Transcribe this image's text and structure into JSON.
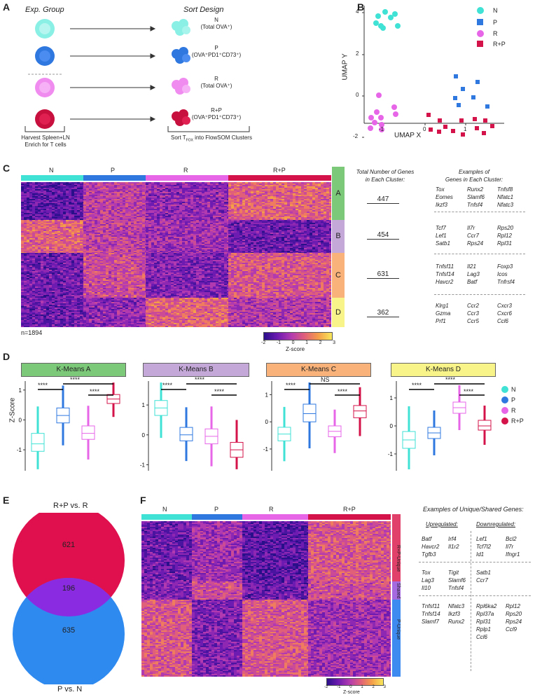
{
  "panels": {
    "A": "A",
    "B": "B",
    "C": "C",
    "D": "D",
    "E": "E",
    "F": "F"
  },
  "colors": {
    "N": "#3fe2d4",
    "P": "#2f78e0",
    "R": "#e766e8",
    "RP": "#d4134a",
    "green": "#7dc97a",
    "purple": "#c3a8d8",
    "orange": "#f8b27a",
    "yellow": "#f8f48a",
    "venn_top": "#e0104f",
    "venn_bottom": "#2f8af0",
    "venn_overlap": "#8a2be2"
  },
  "panelA": {
    "exp_group_title": "Exp. Group",
    "sort_design_title": "Sort Design",
    "groups": [
      {
        "label": "N",
        "sub": "(Total OVA⁺)"
      },
      {
        "label": "P",
        "sub": "(OVA⁺PD1⁺CD73⁺)"
      },
      {
        "label": "R",
        "sub": "(Total OVA⁺)"
      },
      {
        "label": "R+P",
        "sub": "(OVA⁺PD1⁺CD73⁺)"
      }
    ],
    "harvest_line1": "Harvest Spleen+LN",
    "harvest_line2": "Enrich for T cells",
    "sort_prefix": "Sort T",
    "sort_sub": "FOX",
    "sort_suffix": " into FlowSOM Clusters"
  },
  "panelB": {
    "xlabel": "UMAP X",
    "ylabel": "UMAP Y",
    "legend": [
      "N",
      "P",
      "R",
      "R+P"
    ],
    "xticks": [
      "-1",
      "0",
      "1"
    ],
    "yticks": [
      "4",
      "2",
      "0",
      "-2"
    ]
  },
  "panelC": {
    "groups": [
      "N",
      "P",
      "R",
      "R+P"
    ],
    "clusters": [
      "A",
      "B",
      "C",
      "D"
    ],
    "n_label": "n=1894",
    "total_header_line1": "Total Number of Genes",
    "total_header_line2": "in Each Cluster:",
    "examples_header_line1": "Examples of",
    "examples_header_line2": "Genes in Each Cluster:",
    "counts": [
      "447",
      "454",
      "631",
      "362"
    ],
    "genes": [
      [
        "Tox\nEomes\nIkzf3",
        "Runx2\nSlamf6\nTnfsf4",
        "Tnfsf8\nNfatc1\nNfatc3"
      ],
      [
        "Tcf7\nLef1\nSatb1",
        "Il7r\nCcr7\nRps24",
        "Rps20\nRpl12\nRpl31"
      ],
      [
        "Tnfsf11\nTnfsf14\nHavcr2",
        "Il21\nLag3\nBatf",
        "Foxp3\nIcos\nTnfrsf4"
      ],
      [
        "Klrg1\nGzma\nPrf1",
        "Ccr2\nCcr3\nCcr5",
        "Cxcr3\nCxcr6\nCcl6"
      ]
    ],
    "zscore_label": "Z-score",
    "zticks": [
      "-2",
      "-1",
      "0",
      "1",
      "2",
      "3"
    ]
  },
  "panelD": {
    "ylabel": "Z-Score",
    "legend": [
      "N",
      "P",
      "R",
      "R+P"
    ],
    "charts": [
      {
        "title": "K-Means A",
        "sig": [
          "****",
          "****",
          "****"
        ]
      },
      {
        "title": "K-Means B",
        "sig": [
          "****",
          "****",
          "****"
        ]
      },
      {
        "title": "K-Means C",
        "sig": [
          "****",
          "NS",
          "****"
        ]
      },
      {
        "title": "K-Means D",
        "sig": [
          "****",
          "****",
          "****"
        ]
      }
    ]
  },
  "chart_data": [
    {
      "type": "box",
      "title": "K-Means A",
      "categories": [
        "N",
        "P",
        "R",
        "R+P"
      ],
      "median": [
        -0.8,
        0.15,
        -0.45,
        0.7
      ],
      "q1": [
        -1.05,
        -0.1,
        -0.65,
        0.55
      ],
      "q3": [
        -0.45,
        0.4,
        -0.2,
        0.85
      ],
      "ylim": [
        -1.7,
        1.3
      ],
      "yticks": [
        -1,
        0,
        1
      ]
    },
    {
      "type": "box",
      "title": "K-Means B",
      "categories": [
        "N",
        "P",
        "R",
        "R+P"
      ],
      "median": [
        0.9,
        0.0,
        -0.05,
        -0.5
      ],
      "q1": [
        0.65,
        -0.2,
        -0.3,
        -0.75
      ],
      "q3": [
        1.15,
        0.25,
        0.2,
        -0.25
      ],
      "ylim": [
        -1.2,
        1.8
      ],
      "yticks": [
        -1,
        0,
        1
      ]
    },
    {
      "type": "box",
      "title": "K-Means C",
      "categories": [
        "N",
        "P",
        "R",
        "R+P"
      ],
      "median": [
        -0.45,
        0.3,
        -0.35,
        0.4
      ],
      "q1": [
        -0.7,
        0.0,
        -0.55,
        0.15
      ],
      "q3": [
        -0.2,
        0.65,
        -0.15,
        0.6
      ],
      "ylim": [
        -1.8,
        1.5
      ],
      "yticks": [
        -1,
        0,
        1
      ]
    },
    {
      "type": "box",
      "title": "K-Means D",
      "categories": [
        "N",
        "P",
        "R",
        "R+P"
      ],
      "median": [
        -0.5,
        -0.25,
        0.65,
        0.0
      ],
      "q1": [
        -0.8,
        -0.45,
        0.45,
        -0.15
      ],
      "q3": [
        -0.2,
        -0.05,
        0.85,
        0.2
      ],
      "ylim": [
        -1.6,
        1.6
      ],
      "yticks": [
        -1,
        0,
        1
      ]
    },
    {
      "type": "venn",
      "sets": [
        "R+P vs. R",
        "P vs. N"
      ],
      "only_top": 621,
      "overlap": 196,
      "only_bottom": 635
    }
  ],
  "panelE": {
    "top_label": "R+P vs. R",
    "bottom_label": "P vs. N",
    "top_value": "621",
    "overlap_value": "196",
    "bottom_value": "635"
  },
  "panelF": {
    "groups": [
      "N",
      "P",
      "R",
      "R+P"
    ],
    "clusters": [
      "R+P-Unique",
      "Shared",
      "P-Unique"
    ],
    "examples_title": "Examples of Unique/Shared Genes:",
    "upregulated": "Upregulated:",
    "downregulated": "Downregulated:",
    "genes": [
      [
        "Batf\nHavcr2\nTgfb3",
        "Irf4\nIl1r2",
        "Lef1\nTcf7l2\nId1",
        "Bcl2\nIl7r\nIfngr1"
      ],
      [
        "Tox\nLag3\nIl10",
        "Tigit\nSlamf6\nTnfsf4",
        "Satb1\nCcr7",
        ""
      ],
      [
        "Tnfsf11\nTnfsf14\nSlamf7",
        "Nfatc3\nIkzf3\nRunx2",
        "Rpl6ka2\nRpl37a\nRpl31\nRplp1\nCcl6",
        "Rpl12\nRps20\nRps24\nCcl9"
      ]
    ],
    "zscore_label": "Z-score",
    "zticks": [
      "-2",
      "-1",
      "0",
      "1",
      "2",
      "3"
    ]
  }
}
